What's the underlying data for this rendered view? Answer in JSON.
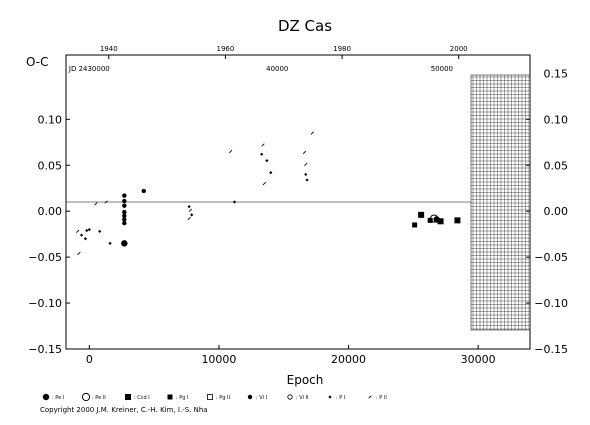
{
  "chart_data": {
    "type": "scatter",
    "title": "DZ Cas",
    "ylabel": "O-C",
    "xlabel": "Epoch",
    "xlim": [
      -1800,
      34000
    ],
    "ylim": [
      -0.15,
      0.17
    ],
    "x_ticks": [
      "0",
      "10000",
      "20000",
      "30000"
    ],
    "y_ticks": [
      "−0.15",
      "−0.10",
      "−0.05",
      "0.00",
      "0.05",
      "0.10"
    ],
    "y_ticks_right": [
      "0.15",
      "0.10",
      "0.05",
      "0.00",
      "−0.05",
      "−0.10",
      "−0.15"
    ],
    "top_year_ticks": [
      "1940",
      "1960",
      "1980",
      "2000"
    ],
    "top_year_epochs": [
      1500,
      10500,
      19500,
      28500
    ],
    "jd_labels": [
      "JD 2430000",
      "40000",
      "50000"
    ],
    "jd_epochs": [
      0,
      14500,
      27200
    ],
    "legend": [
      "Pe I",
      "Pe II",
      "Ccd I",
      "Pg I",
      "Pg II",
      "Vi I",
      "Vi II",
      "P I",
      "P II"
    ],
    "copyright": "Copyright 2000 J.M. Kreiner, C.-H. Kim, I.-S. Nha",
    "series": [
      {
        "name": "P I",
        "points": [
          [
            -600,
            -0.026
          ],
          [
            -300,
            -0.03
          ],
          [
            -200,
            -0.021
          ],
          [
            0,
            -0.02
          ],
          [
            800,
            -0.022
          ],
          [
            1600,
            -0.035
          ],
          [
            2700,
            -0.036
          ],
          [
            7700,
            0.005
          ],
          [
            7900,
            -0.004
          ],
          [
            11200,
            0.01
          ],
          [
            13300,
            0.062
          ],
          [
            13700,
            0.055
          ],
          [
            14000,
            0.042
          ],
          [
            16700,
            0.04
          ],
          [
            16800,
            0.034
          ]
        ]
      },
      {
        "name": "P II",
        "points": [
          [
            -900,
            -0.022
          ],
          [
            -800,
            -0.046
          ],
          [
            500,
            0.008
          ],
          [
            1300,
            0.01
          ],
          [
            7700,
            -0.008
          ],
          [
            7800,
            0.001
          ],
          [
            10900,
            0.065
          ],
          [
            13400,
            0.072
          ],
          [
            13500,
            0.03
          ],
          [
            16600,
            0.064
          ],
          [
            16700,
            0.051
          ],
          [
            17200,
            0.085
          ]
        ]
      },
      {
        "name": "Vi I",
        "points": [
          [
            2700,
            0.017
          ],
          [
            2700,
            0.011
          ],
          [
            2700,
            0.006
          ],
          [
            2700,
            -0.001
          ],
          [
            2700,
            -0.005
          ],
          [
            2700,
            -0.009
          ],
          [
            2700,
            -0.013
          ],
          [
            4200,
            0.022
          ]
        ]
      },
      {
        "name": "Pe I",
        "points": [
          [
            2700,
            -0.035
          ],
          [
            26800,
            -0.009
          ]
        ]
      },
      {
        "name": "Pe II",
        "points": [
          [
            26600,
            -0.008
          ]
        ]
      },
      {
        "name": "Ccd I",
        "points": [
          [
            25600,
            -0.004
          ],
          [
            27100,
            -0.011
          ],
          [
            28400,
            -0.01
          ]
        ]
      },
      {
        "name": "Pg I",
        "points": [
          [
            25100,
            -0.015
          ],
          [
            26300,
            -0.01
          ]
        ]
      }
    ]
  }
}
